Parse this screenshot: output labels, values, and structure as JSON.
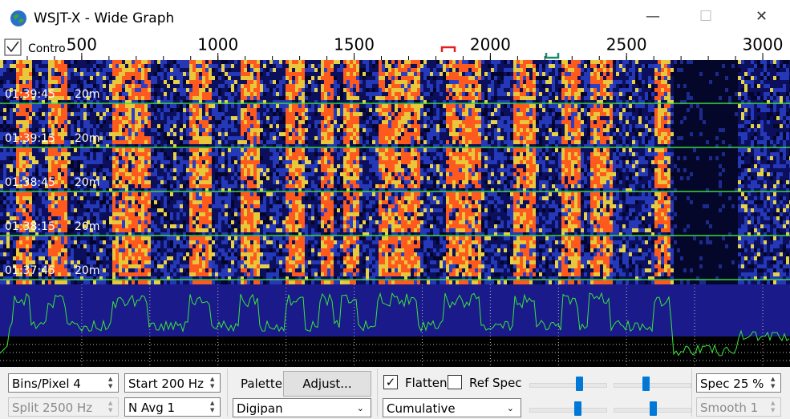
{
  "window": {
    "title": "WSJT-X - Wide Graph"
  },
  "scale": {
    "control_label": "Contro",
    "xlim": [
      200,
      3100
    ],
    "ticks": [
      500,
      1000,
      1500,
      2000,
      2500,
      3000
    ]
  },
  "waterfall": {
    "rows": [
      {
        "time": "01:39:45",
        "band": "20m"
      },
      {
        "time": "01:39:15",
        "band": "20m"
      },
      {
        "time": "01:38:45",
        "band": "20m"
      },
      {
        "time": "01:38:15",
        "band": "20m"
      },
      {
        "time": "01:37:45",
        "band": "20m"
      }
    ]
  },
  "controls": {
    "bins_per_pixel": "Bins/Pixel  4",
    "start": "Start 200 Hz",
    "split": "Split  2500  Hz",
    "n_avg": "N Avg 1",
    "palette_label": "Palette",
    "adjust_button": "Adjust...",
    "palette": "Digipan",
    "flatten": "Flatten",
    "ref_spec": "Ref Spec",
    "mode": "Cumulative",
    "spec": "Spec 25 %",
    "smooth": "Smooth   1"
  }
}
